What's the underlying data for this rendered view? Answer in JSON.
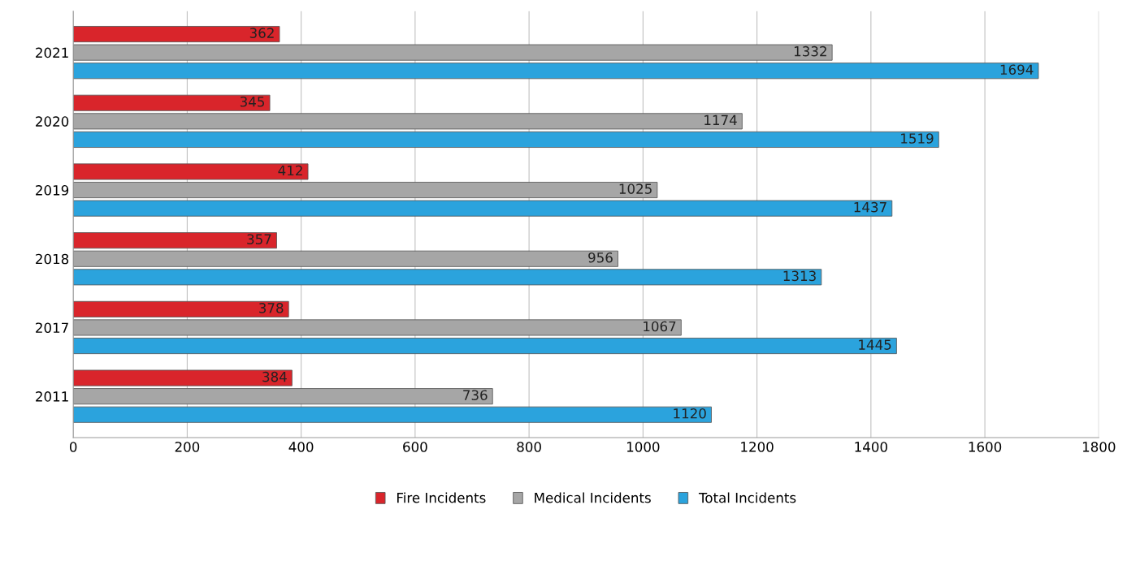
{
  "chart_data": {
    "type": "bar",
    "orientation": "horizontal",
    "categories": [
      "2021",
      "2020",
      "2019",
      "2018",
      "2017",
      "2011"
    ],
    "series": [
      {
        "name": "Fire Incidents",
        "color": "#d9252b",
        "values": [
          362,
          345,
          412,
          357,
          378,
          384
        ]
      },
      {
        "name": "Medical Incidents",
        "color": "#a6a6a6",
        "values": [
          1332,
          1174,
          1025,
          956,
          1067,
          736
        ]
      },
      {
        "name": "Total Incidents",
        "color": "#2ba3dd",
        "values": [
          1694,
          1519,
          1437,
          1313,
          1445,
          1120
        ]
      }
    ],
    "xlim": [
      0,
      1800
    ],
    "xticks": [
      0,
      200,
      400,
      600,
      800,
      1000,
      1200,
      1400,
      1600,
      1800
    ],
    "grid": "x",
    "legend": "bottom",
    "data_labels": true
  }
}
